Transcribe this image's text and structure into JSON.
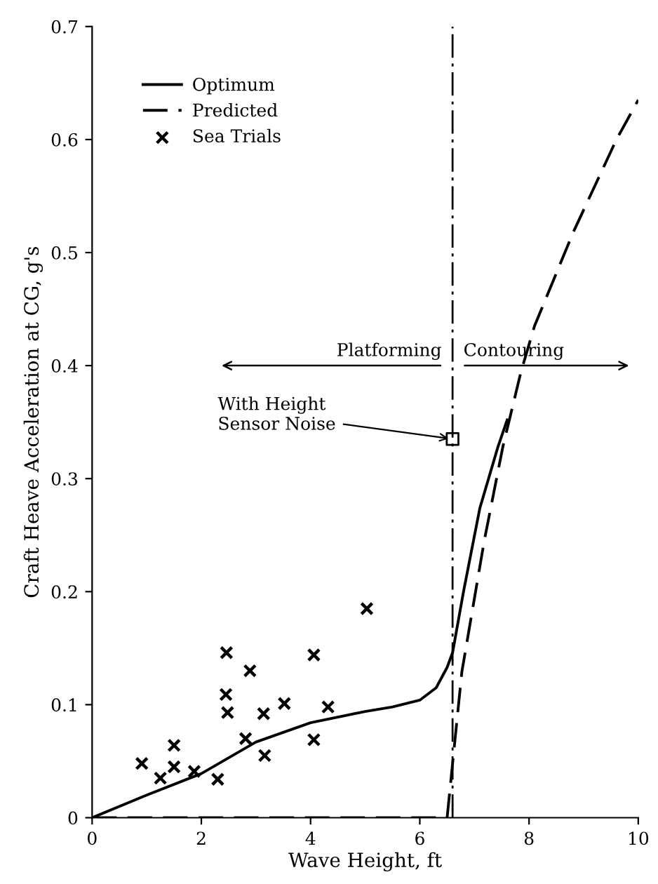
{
  "chart_data": {
    "type": "line",
    "xlabel": "Wave Height, ft",
    "ylabel": "Craft Heave Acceleration at CG, g's",
    "xlim": [
      0,
      10
    ],
    "ylim": [
      0,
      0.7
    ],
    "xticks": [
      0,
      2,
      4,
      6,
      8,
      10
    ],
    "yticks": [
      0,
      0.1,
      0.2,
      0.3,
      0.4,
      0.5,
      0.6,
      0.7
    ],
    "grid": false,
    "legend": "top left",
    "series": [
      {
        "name": "Optimum",
        "line_style": "solid",
        "marker": "none",
        "color": "#000000",
        "x": [
          0,
          1,
          2,
          3,
          4,
          5,
          5.5,
          6,
          6.3,
          6.5,
          6.6,
          6.8,
          7.1,
          7.43,
          7.6
        ],
        "values": [
          0,
          0.02,
          0.039,
          0.067,
          0.084,
          0.094,
          0.098,
          0.104,
          0.115,
          0.133,
          0.146,
          0.2,
          0.274,
          0.328,
          0.352
        ]
      },
      {
        "name": "Predicted",
        "line_style": "dashed",
        "marker": "none",
        "color": "#000000",
        "x": [
          0,
          6.5,
          6.77,
          7.18,
          7.52,
          7.85,
          8.1,
          8.81,
          9.6,
          10
        ],
        "values": [
          0,
          0,
          0.129,
          0.245,
          0.328,
          0.394,
          0.435,
          0.518,
          0.6,
          0.635
        ]
      },
      {
        "name": "Sea Trials",
        "type": "scatter",
        "marker": "cross",
        "color": "#000000",
        "x": [
          0.91,
          1.25,
          1.5,
          1.5,
          1.87,
          2.3,
          2.46,
          2.45,
          2.48,
          2.81,
          2.89,
          3.14,
          3.16,
          3.52,
          4.06,
          4.06,
          4.32,
          5.03
        ],
        "values": [
          0.048,
          0.035,
          0.064,
          0.045,
          0.041,
          0.034,
          0.146,
          0.109,
          0.093,
          0.07,
          0.13,
          0.092,
          0.055,
          0.101,
          0.144,
          0.069,
          0.098,
          0.185
        ]
      },
      {
        "type": "scatter",
        "marker": "square",
        "color": "#000000",
        "x": [
          6.6
        ],
        "values": [
          0.335
        ]
      }
    ],
    "ref_lines": [
      {
        "axis": "x",
        "value": 6.6,
        "line_style": "dashdot",
        "color": "#000000"
      }
    ],
    "annotations": [
      "Platforming",
      "Contouring",
      {
        "text": "With Height\nSensor Noise",
        "x": 6.6,
        "y": 0.335
      }
    ]
  }
}
